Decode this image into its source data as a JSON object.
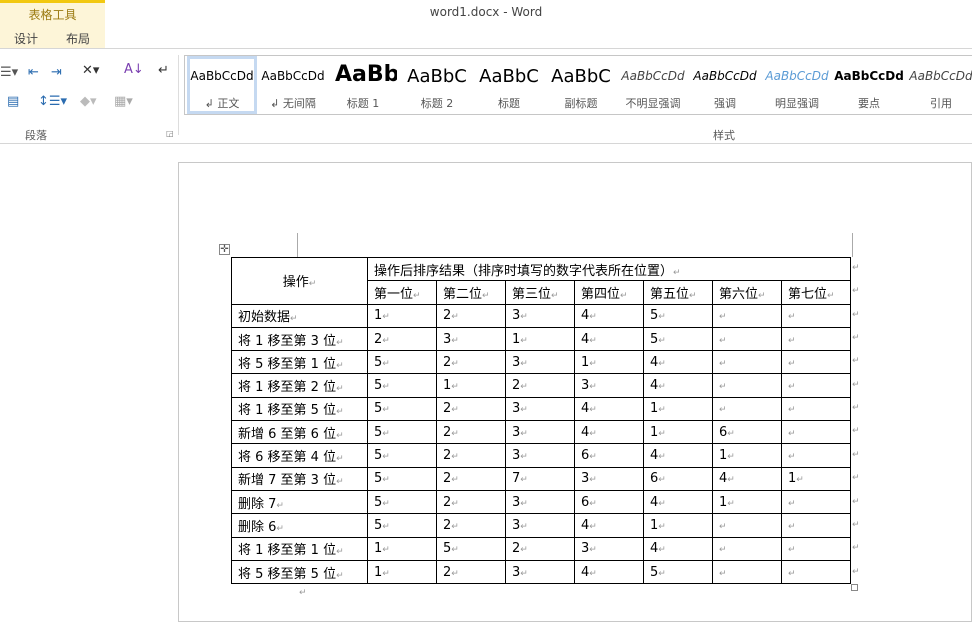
{
  "window": {
    "title": "word1.docx - Word"
  },
  "context_tab": {
    "group": "表格工具",
    "tabs": [
      "设计",
      "布局"
    ]
  },
  "ribbon": {
    "paragraph_group": "段落",
    "styles_group": "样式",
    "styles": [
      {
        "preview": "AaBbCcDd",
        "name": "↲ 正文",
        "selected": true
      },
      {
        "preview": "AaBbCcDd",
        "name": "↲ 无间隔"
      },
      {
        "preview": "AaBb",
        "name": "标题 1"
      },
      {
        "preview": "AaBbC",
        "name": "标题 2"
      },
      {
        "preview": "AaBbC",
        "name": "标题"
      },
      {
        "preview": "AaBbC",
        "name": "副标题"
      },
      {
        "preview": "AaBbCcDd",
        "name": "不明显强调"
      },
      {
        "preview": "AaBbCcDd",
        "name": "强调"
      },
      {
        "preview": "AaBbCcDd",
        "name": "明显强调"
      },
      {
        "preview": "AaBbCcDd",
        "name": "要点"
      },
      {
        "preview": "AaBbCcDd",
        "name": "引用"
      }
    ]
  },
  "table": {
    "op_header": "操作",
    "result_header": "操作后排序结果（排序时填写的数字代表所在位置）",
    "positions": [
      "第一位",
      "第二位",
      "第三位",
      "第四位",
      "第五位",
      "第六位",
      "第七位"
    ],
    "rows": [
      {
        "op": "初始数据",
        "v": [
          "1",
          "2",
          "3",
          "4",
          "5",
          "",
          ""
        ]
      },
      {
        "op": "将 1 移至第 3 位",
        "v": [
          "2",
          "3",
          "1",
          "4",
          "5",
          "",
          ""
        ]
      },
      {
        "op": "将 5 移至第 1 位",
        "v": [
          "5",
          "2",
          "3",
          "1",
          "4",
          "",
          ""
        ]
      },
      {
        "op": "将 1 移至第 2 位",
        "v": [
          "5",
          "1",
          "2",
          "3",
          "4",
          "",
          ""
        ]
      },
      {
        "op": "将 1 移至第 5 位",
        "v": [
          "5",
          "2",
          "3",
          "4",
          "1",
          "",
          ""
        ]
      },
      {
        "op": "新增 6 至第 6 位",
        "v": [
          "5",
          "2",
          "3",
          "4",
          "1",
          "6",
          ""
        ]
      },
      {
        "op": "将 6 移至第 4 位",
        "v": [
          "5",
          "2",
          "3",
          "6",
          "4",
          "1",
          ""
        ]
      },
      {
        "op": "新增 7 至第 3 位",
        "v": [
          "5",
          "2",
          "7",
          "3",
          "6",
          "4",
          "1"
        ]
      },
      {
        "op": "删除 7",
        "v": [
          "5",
          "2",
          "3",
          "6",
          "4",
          "1",
          ""
        ]
      },
      {
        "op": "删除 6",
        "v": [
          "5",
          "2",
          "3",
          "4",
          "1",
          "",
          ""
        ]
      },
      {
        "op": "将 1 移至第 1 位",
        "v": [
          "1",
          "5",
          "2",
          "3",
          "4",
          "",
          ""
        ]
      },
      {
        "op": "将 5 移至第 5 位",
        "v": [
          "1",
          "2",
          "3",
          "4",
          "5",
          "",
          ""
        ]
      }
    ]
  }
}
